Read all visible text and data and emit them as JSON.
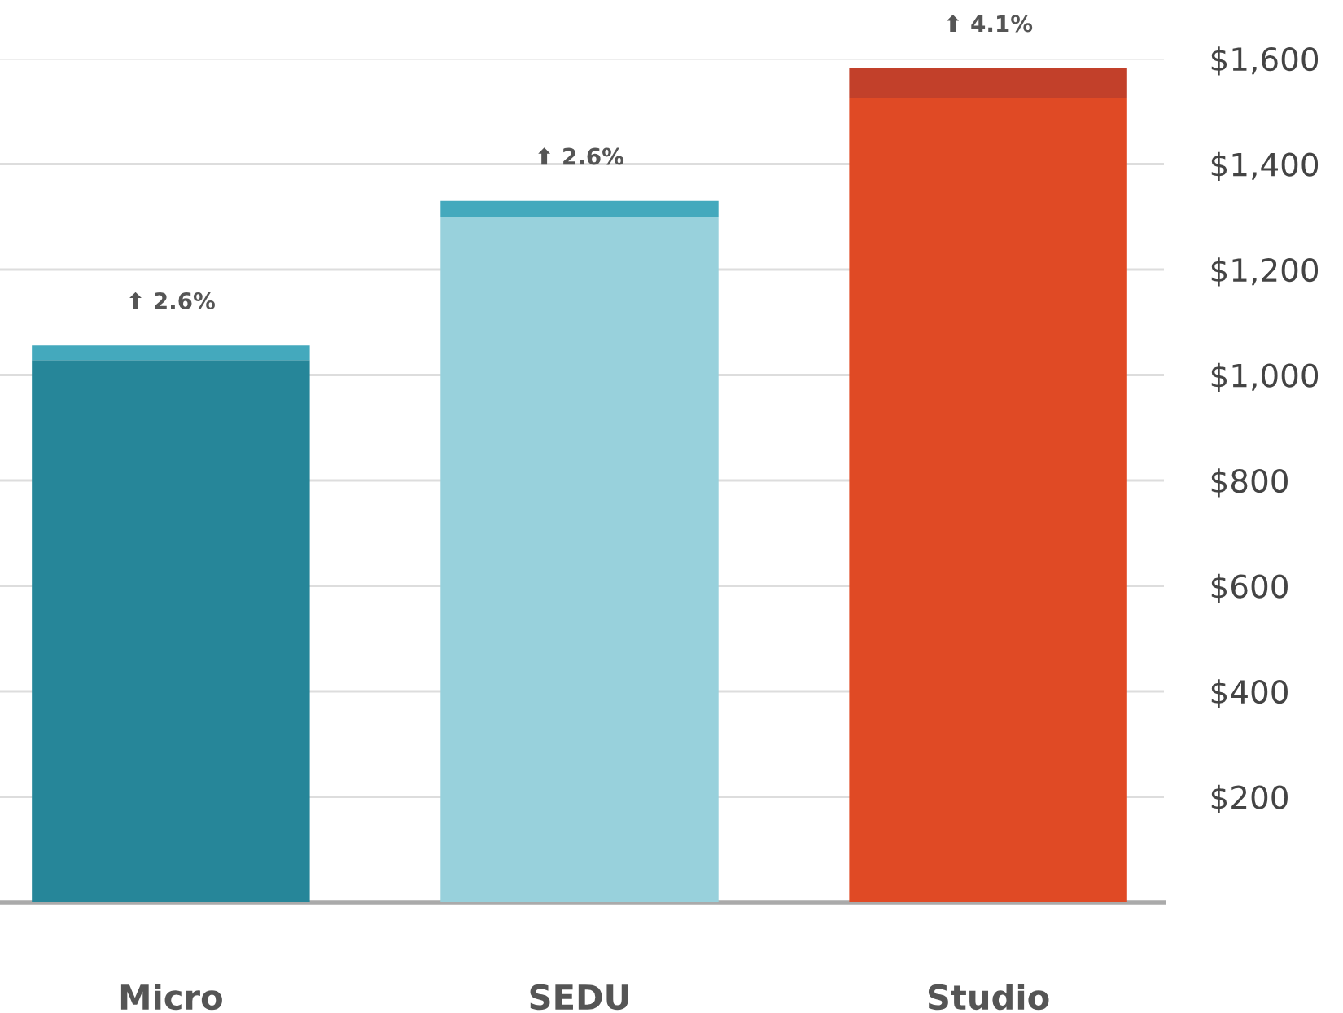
{
  "chart_data": {
    "type": "bar",
    "stacked": true,
    "categories": [
      "Micro",
      "SEDU",
      "Studio"
    ],
    "series": [
      {
        "colors": [
          "#268699",
          "#98d1dc",
          "#e04a25"
        ],
        "values": [
          1028,
          1300,
          1526
        ]
      },
      {
        "colors": [
          "#44a9bd",
          "#44a9bd",
          "#c2402a"
        ],
        "values": [
          28,
          30,
          56
        ]
      }
    ],
    "annotations": [
      {
        "text": "⬆ 2.6%",
        "x": "Micro",
        "y": 1056
      },
      {
        "text": "⬆ 2.6%",
        "x": "SEDU",
        "y": 1330
      },
      {
        "text": "⬆ 4.1%",
        "x": "Studio",
        "y": 1582
      }
    ],
    "ylim": [
      0,
      1600
    ],
    "yticks": [
      {
        "value": 200,
        "label": "$200"
      },
      {
        "value": 400,
        "label": "$400"
      },
      {
        "value": 600,
        "label": "$600"
      },
      {
        "value": 800,
        "label": "$800"
      },
      {
        "value": 1000,
        "label": "$1,000"
      },
      {
        "value": 1200,
        "label": "$1,200"
      },
      {
        "value": 1400,
        "label": "$1,400"
      },
      {
        "value": 1600,
        "label": "$1,600"
      }
    ],
    "grid": "y",
    "legend": false
  }
}
